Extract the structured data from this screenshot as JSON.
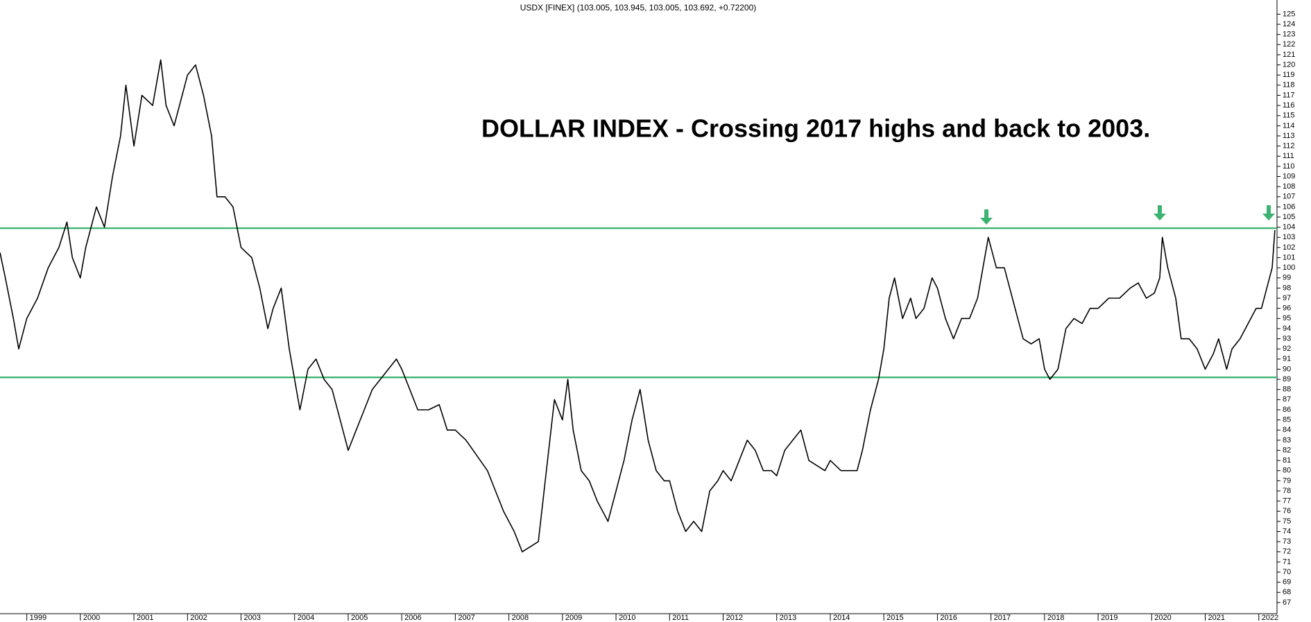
{
  "chart_data": {
    "type": "line",
    "title": "USDX [FINEX] (103.005, 103.945, 103.005, 103.692, +0.72200)",
    "annotation": "DOLLAR INDEX - Crossing 2017 highs and back to 2003.",
    "annotation_color": "#1414e6",
    "color": "#000000",
    "x": [
      1998.5,
      1998.6,
      1998.75,
      1998.85,
      1999.0,
      1999.2,
      1999.4,
      1999.6,
      1999.75,
      1999.85,
      2000.0,
      2000.1,
      2000.3,
      2000.45,
      2000.6,
      2000.75,
      2000.85,
      2001.0,
      2001.15,
      2001.35,
      2001.5,
      2001.6,
      2001.75,
      2001.9,
      2002.0,
      2002.15,
      2002.3,
      2002.45,
      2002.55,
      2002.7,
      2002.85,
      2003.0,
      2003.2,
      2003.35,
      2003.5,
      2003.6,
      2003.75,
      2003.9,
      2004.0,
      2004.1,
      2004.25,
      2004.4,
      2004.55,
      2004.7,
      2004.85,
      2005.0,
      2005.15,
      2005.3,
      2005.45,
      2005.6,
      2005.75,
      2005.9,
      2006.0,
      2006.15,
      2006.3,
      2006.5,
      2006.7,
      2006.85,
      2007.0,
      2007.2,
      2007.4,
      2007.6,
      2007.75,
      2007.9,
      2008.1,
      2008.25,
      2008.4,
      2008.55,
      2008.7,
      2008.85,
      2009.0,
      2009.1,
      2009.2,
      2009.35,
      2009.5,
      2009.65,
      2009.85,
      2010.0,
      2010.15,
      2010.3,
      2010.45,
      2010.6,
      2010.75,
      2010.9,
      2011.0,
      2011.15,
      2011.3,
      2011.45,
      2011.6,
      2011.75,
      2011.9,
      2012.0,
      2012.15,
      2012.3,
      2012.45,
      2012.6,
      2012.75,
      2012.9,
      2013.0,
      2013.15,
      2013.3,
      2013.45,
      2013.6,
      2013.75,
      2013.9,
      2014.0,
      2014.2,
      2014.35,
      2014.5,
      2014.6,
      2014.75,
      2014.9,
      2015.0,
      2015.1,
      2015.2,
      2015.35,
      2015.5,
      2015.6,
      2015.75,
      2015.9,
      2016.0,
      2016.15,
      2016.3,
      2016.45,
      2016.6,
      2016.75,
      2016.95,
      2017.1,
      2017.25,
      2017.4,
      2017.6,
      2017.75,
      2017.9,
      2018.0,
      2018.1,
      2018.25,
      2018.4,
      2018.55,
      2018.7,
      2018.85,
      2019.0,
      2019.2,
      2019.4,
      2019.6,
      2019.75,
      2019.9,
      2020.05,
      2020.15,
      2020.2,
      2020.3,
      2020.45,
      2020.55,
      2020.7,
      2020.85,
      2021.0,
      2021.15,
      2021.25,
      2021.4,
      2021.5,
      2021.65,
      2021.8,
      2021.95,
      2022.05,
      2022.15,
      2022.25,
      2022.3
    ],
    "values": [
      101.5,
      99,
      95,
      92,
      95,
      97,
      100,
      102,
      104.5,
      101,
      99,
      102,
      106,
      104,
      109,
      113,
      118,
      112,
      117,
      116,
      120.5,
      116,
      114,
      117,
      119,
      120,
      117,
      113,
      107,
      107,
      106,
      102,
      101,
      98,
      94,
      96,
      98,
      92,
      89,
      86,
      90,
      91,
      89,
      88,
      85,
      82,
      84,
      86,
      88,
      89,
      90,
      91,
      90,
      88,
      86,
      86,
      86.5,
      84,
      84,
      83,
      81.5,
      80,
      78,
      76,
      74,
      72,
      72.5,
      73,
      80,
      87,
      85,
      89,
      84,
      80,
      79,
      77,
      75,
      78,
      81,
      85,
      88,
      83,
      80,
      79,
      79,
      76,
      74,
      75,
      74,
      78,
      79,
      80,
      79,
      81,
      83,
      82,
      80,
      80,
      79.5,
      82,
      83,
      84,
      81,
      80.5,
      80,
      81,
      80,
      80,
      80,
      82,
      86,
      89,
      92,
      97,
      99,
      95,
      97,
      95,
      96,
      99,
      98,
      95,
      93,
      95,
      95,
      97,
      103,
      100,
      100,
      97,
      93,
      92.5,
      93,
      90,
      89,
      90,
      94,
      95,
      94.5,
      96,
      96,
      97,
      97,
      98,
      98.5,
      97,
      97.5,
      99,
      103,
      100,
      97,
      93,
      93,
      92,
      90,
      91.5,
      93,
      90,
      92,
      93,
      94.5,
      96,
      96,
      98,
      100,
      103.7
    ],
    "hlines": [
      {
        "value": 103.9,
        "color": "#3cb371"
      },
      {
        "value": 89.2,
        "color": "#3cb371"
      }
    ],
    "xlim": [
      1998.5,
      2022.34
    ],
    "ylim": [
      65.9,
      125.85
    ],
    "xticks": [
      1999,
      2000,
      2001,
      2002,
      2003,
      2004,
      2005,
      2006,
      2007,
      2008,
      2009,
      2010,
      2011,
      2012,
      2013,
      2014,
      2015,
      2016,
      2017,
      2018,
      2019,
      2020,
      2021,
      2022
    ],
    "yticks": [
      67,
      68,
      69,
      70,
      71,
      72,
      73,
      74,
      75,
      76,
      77,
      78,
      79,
      80,
      81,
      82,
      83,
      84,
      85,
      86,
      87,
      88,
      89,
      90,
      91,
      92,
      93,
      94,
      95,
      96,
      97,
      98,
      99,
      100,
      101,
      102,
      103,
      104,
      105,
      106,
      107,
      108,
      109,
      110,
      111,
      112,
      113,
      114,
      115,
      116,
      117,
      118,
      119,
      120,
      121,
      122,
      123,
      124,
      125
    ]
  }
}
